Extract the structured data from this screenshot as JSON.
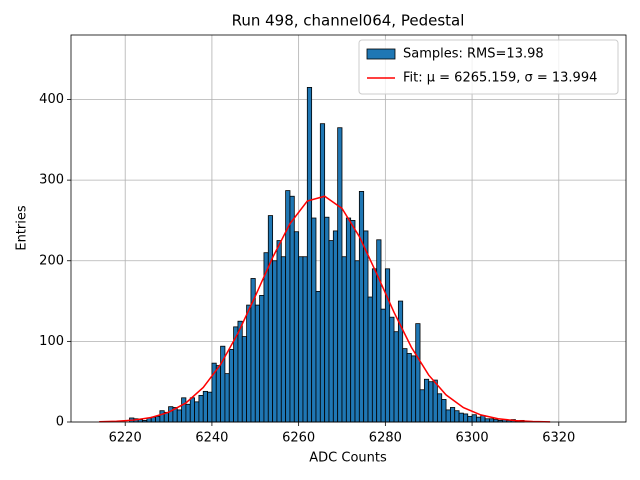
{
  "chart_data": {
    "type": "histogram",
    "title": "Run 498, channel064, Pedestal",
    "xlabel": "ADC Counts",
    "ylabel": "Entries",
    "name": "Samples: RMS=13.98",
    "color": "#1f77b4",
    "bins": [
      6221,
      6222,
      6223,
      6224,
      6225,
      6226,
      6227,
      6228,
      6229,
      6230,
      6231,
      6232,
      6233,
      6234,
      6235,
      6236,
      6237,
      6238,
      6239,
      6240,
      6241,
      6242,
      6243,
      6244,
      6245,
      6246,
      6247,
      6248,
      6249,
      6250,
      6251,
      6252,
      6253,
      6254,
      6255,
      6256,
      6257,
      6258,
      6259,
      6260,
      6261,
      6262,
      6263,
      6264,
      6265,
      6266,
      6267,
      6268,
      6269,
      6270,
      6271,
      6272,
      6273,
      6274,
      6275,
      6276,
      6277,
      6278,
      6279,
      6280,
      6281,
      6282,
      6283,
      6284,
      6285,
      6286,
      6287,
      6288,
      6289,
      6290,
      6291,
      6292,
      6293,
      6294,
      6295,
      6296,
      6297,
      6298,
      6299,
      6300,
      6301,
      6302,
      6303,
      6304,
      6305,
      6306,
      6307,
      6308,
      6309,
      6310,
      6311,
      6312
    ],
    "counts": [
      5,
      4,
      3,
      2,
      5,
      6,
      7,
      14,
      12,
      19,
      18,
      15,
      30,
      22,
      30,
      25,
      33,
      38,
      37,
      73,
      70,
      94,
      60,
      90,
      118,
      125,
      106,
      145,
      178,
      145,
      157,
      210,
      256,
      200,
      225,
      205,
      287,
      280,
      236,
      205,
      205,
      415,
      253,
      162,
      370,
      254,
      225,
      237,
      365,
      205,
      253,
      250,
      200,
      286,
      237,
      155,
      190,
      226,
      140,
      190,
      130,
      112,
      150,
      91,
      85,
      82,
      122,
      40,
      53,
      50,
      52,
      35,
      28,
      15,
      18,
      14,
      11,
      10,
      7,
      9,
      6,
      8,
      4,
      4,
      3,
      2,
      3,
      2,
      3,
      1,
      2
    ],
    "fit": {
      "name": "Fit: μ = 6265.159, σ = 13.994",
      "color": "#ff0000",
      "x": [
        6214,
        6218,
        6222,
        6226,
        6230,
        6234,
        6238,
        6242,
        6246,
        6250,
        6254,
        6258,
        6262,
        6266,
        6270,
        6274,
        6278,
        6282,
        6286,
        6290,
        6294,
        6298,
        6302,
        6306,
        6310,
        6314,
        6318
      ],
      "values": [
        0.35,
        0.96,
        2.4,
        5.6,
        12.0,
        23.6,
        42.8,
        71.4,
        110,
        156,
        204,
        246,
        274,
        280,
        265,
        230,
        184,
        136,
        92.7,
        58.2,
        33.6,
        17.9,
        8.8,
        4.0,
        1.7,
        0.6,
        0.2
      ]
    },
    "xlim": [
      6207.5,
      6335.5
    ],
    "ylim": [
      0,
      480
    ],
    "xticks": [
      6220,
      6240,
      6260,
      6280,
      6300,
      6320
    ],
    "yticks": [
      0,
      100,
      200,
      300,
      400
    ],
    "grid": true,
    "legend": "upper right"
  }
}
